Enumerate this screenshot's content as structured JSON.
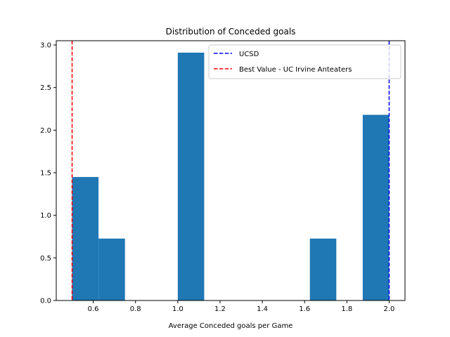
{
  "chart_data": {
    "type": "bar",
    "title": "Distribution of Conceded goals",
    "xlabel": "Average Conceded goals per Game",
    "ylabel": "",
    "xlim": [
      0.425,
      2.075
    ],
    "ylim": [
      0,
      3.05
    ],
    "xticks": [
      0.6,
      0.8,
      1.0,
      1.2,
      1.4,
      1.6,
      1.8,
      2.0
    ],
    "xtick_labels": [
      "0.6",
      "0.8",
      "1.0",
      "1.2",
      "1.4",
      "1.6",
      "1.8",
      "2.0"
    ],
    "yticks": [
      0.0,
      0.5,
      1.0,
      1.5,
      2.0,
      2.5,
      3.0
    ],
    "ytick_labels": [
      "0.0",
      "0.5",
      "1.0",
      "1.5",
      "2.0",
      "2.5",
      "3.0"
    ],
    "bin_edges": [
      0.5,
      0.625,
      0.75,
      0.875,
      1.0,
      1.125,
      1.25,
      1.375,
      1.5,
      1.625,
      1.75,
      1.875,
      2.0
    ],
    "values": [
      1.45,
      0.727,
      0,
      0,
      2.91,
      0,
      0,
      0,
      0,
      0.727,
      0,
      2.18
    ],
    "bar_color": "#1f77b4",
    "reference_lines": [
      {
        "name": "UCSD",
        "x": 2.0,
        "color": "#0000ff",
        "style": "dashed"
      },
      {
        "name": "Best Value - UC Irvine Anteaters",
        "x": 0.5,
        "color": "#ff0000",
        "style": "dashed"
      }
    ],
    "legend_position": "top-right",
    "grid": false
  }
}
